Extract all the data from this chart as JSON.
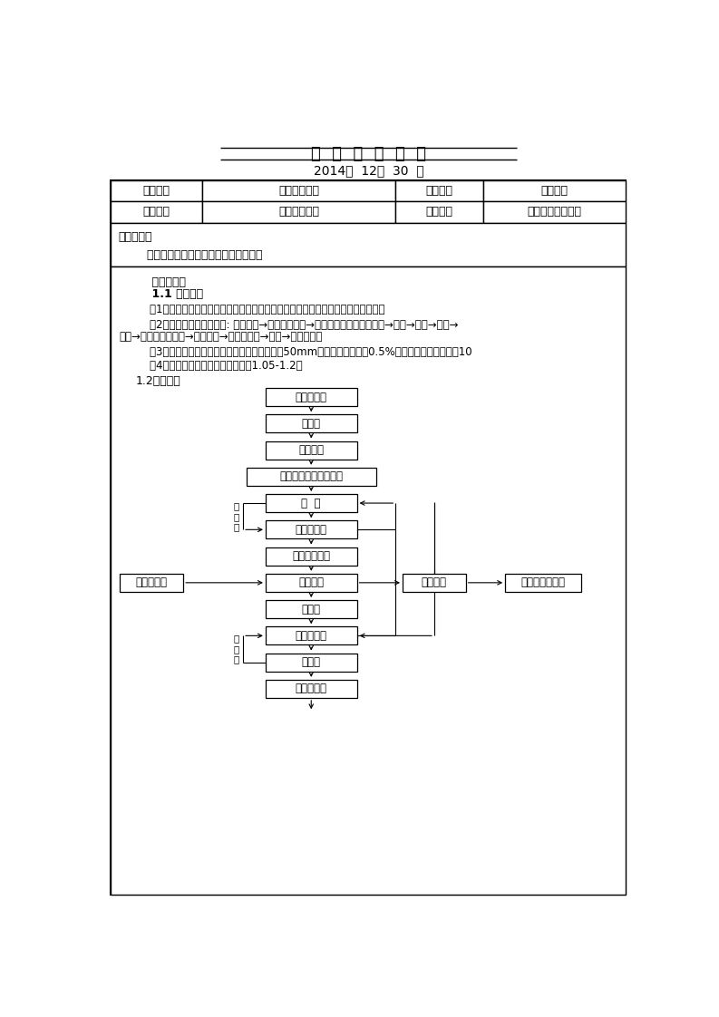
{
  "title": "技  术  交  底  记  录",
  "date": "2014年  12月  30  日",
  "col1_header": "工程名称",
  "col2_header": "百特扩建项目",
  "col3_header": "施工单位",
  "col4_header": "华仁建设",
  "col1_row2": "交底部位",
  "col2_row2": "基础桩基工程",
  "col3_row2": "工序名称",
  "col4_row2": "钢筋混凝土灌注桩",
  "jt_title": "交底提要：",
  "jt_content": "    钢筋混凝土灌注桩施工工艺及施工方法",
  "jn_title": "    交底内容：",
  "s11_title": "    1.1 施工要求",
  "item1": "    （1）灌注桩施工前，根据设计要求进一步确定施工设备、施工工艺以及技术要求。",
  "item2a": "    （2）钻孔灌注桩工艺流程: 埋设护筒→注入护壁泥浆→桩机就位（钢筋笼制作）→钻孔→排渣→清孔→",
  "item2b": "筋笼→下放混凝土导管→二次清孔→浇筑混凝土→成桩→机器移位。",
  "item3": "    （3）钻孔灌注桩施工时应保证桩径偏差不大于50mm，垂直度偏差小于0.5%，桩位允许偏差不大于10",
  "item4": "    （4）钻孔灌注桩施工时，充盈系数1.05-1.2。",
  "s12_title": "1.2工艺流程",
  "box1": "放线定桩位",
  "box2": "挖导槽",
  "box3": "埋设护筒",
  "box4": "钻机定位，调整垂直度",
  "box5": "成  孔",
  "box6": "第一次清孔",
  "box7": "测孔深、沉淤",
  "box8": "下钢筋笼",
  "box9": "下导管",
  "box10": "第二次清孔",
  "box11": "测沉渣",
  "box12": "安放隔水栓",
  "box_gc": "钢筋笼制作",
  "box_nj": "泥浆循环",
  "box_fj": "废浆（土）外运",
  "label_bhg1": "不\n合\n格",
  "label_bhg2": "不\n合\n格",
  "bg_color": "#ffffff"
}
